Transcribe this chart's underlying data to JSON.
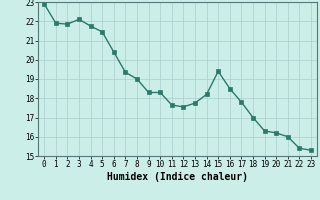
{
  "x": [
    0,
    1,
    2,
    3,
    4,
    5,
    6,
    7,
    8,
    9,
    10,
    11,
    12,
    13,
    14,
    15,
    16,
    17,
    18,
    19,
    20,
    21,
    22,
    23
  ],
  "y": [
    22.9,
    21.9,
    21.85,
    22.1,
    21.75,
    21.45,
    20.4,
    19.35,
    19.0,
    18.3,
    18.3,
    17.65,
    17.55,
    17.75,
    18.2,
    19.4,
    18.5,
    17.8,
    17.0,
    16.3,
    16.2,
    16.0,
    15.4,
    15.3
  ],
  "line_color": "#2a7a6a",
  "marker": "s",
  "markersize": 2.5,
  "linewidth": 1.0,
  "bg_color": "#cceee8",
  "grid_color": "#aacccc",
  "xlabel": "Humidex (Indice chaleur)",
  "xlim": [
    -0.5,
    23.5
  ],
  "ylim": [
    15,
    23
  ],
  "yticks": [
    15,
    16,
    17,
    18,
    19,
    20,
    21,
    22,
    23
  ],
  "xticks": [
    0,
    1,
    2,
    3,
    4,
    5,
    6,
    7,
    8,
    9,
    10,
    11,
    12,
    13,
    14,
    15,
    16,
    17,
    18,
    19,
    20,
    21,
    22,
    23
  ],
  "tick_fontsize": 5.5,
  "xlabel_fontsize": 7
}
